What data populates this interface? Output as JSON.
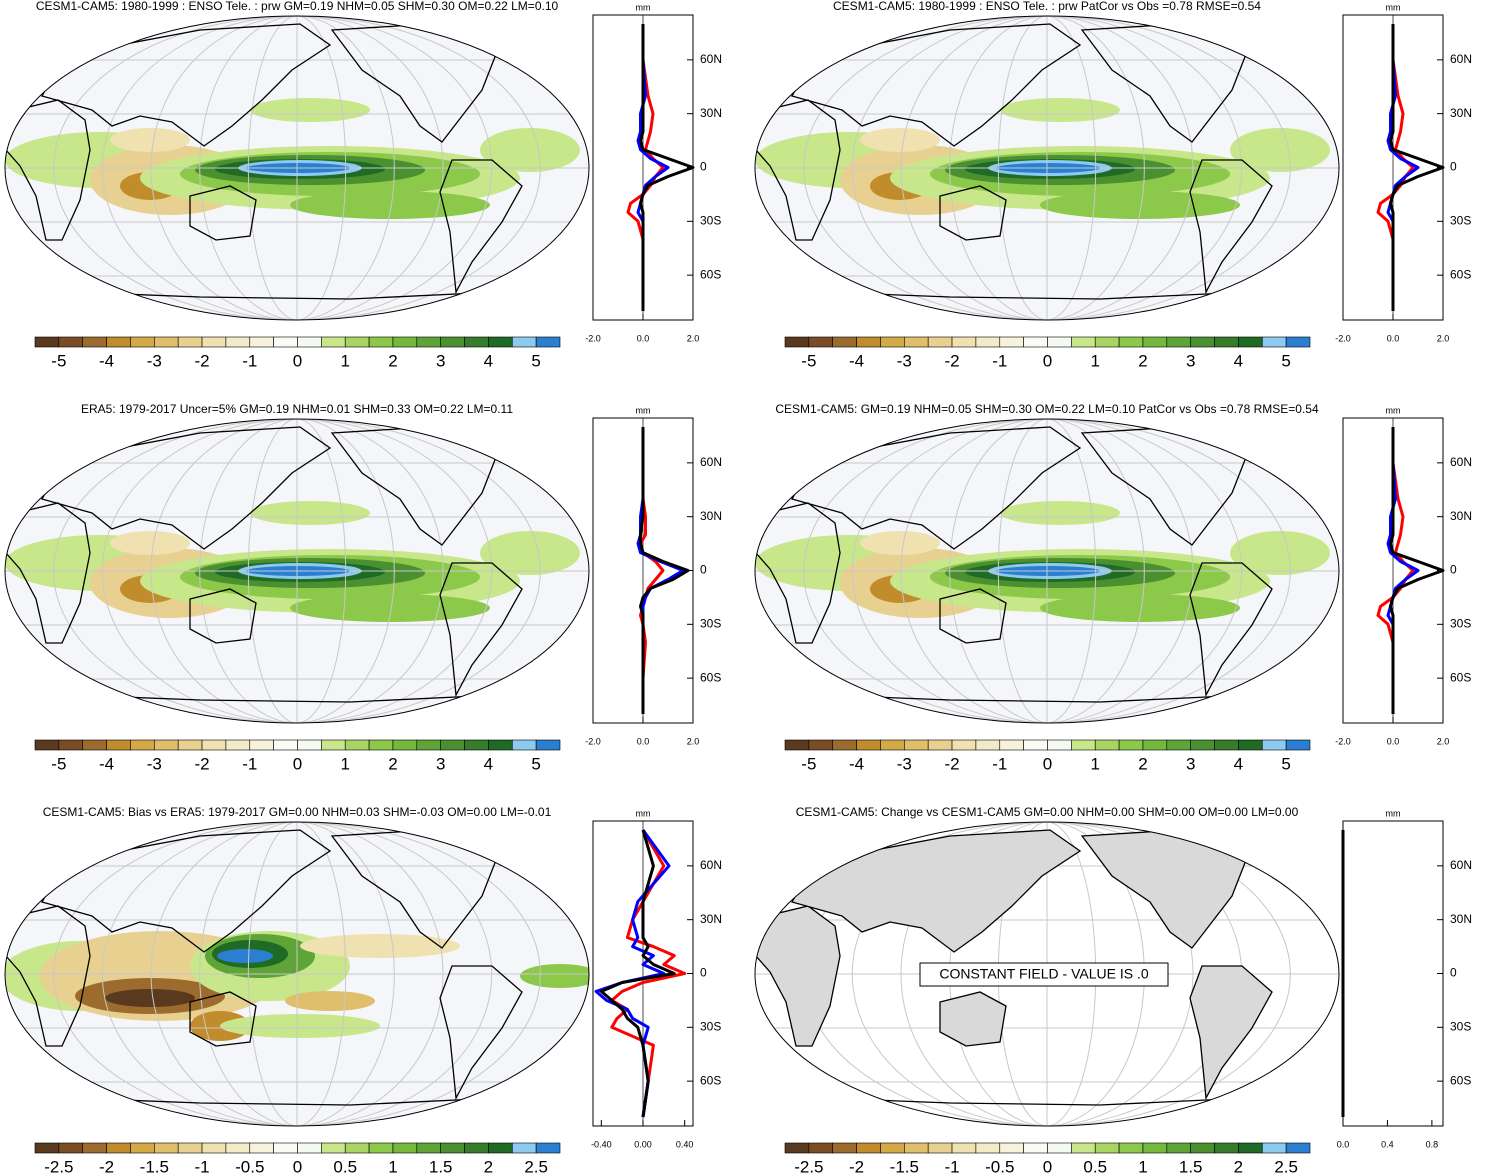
{
  "panels": [
    {
      "title": "CESM1-CAM5: 1980-1999 : ENSO Tele. : prw GM=0.19 NHM=0.05 SHM=0.30 OM=0.22 LM=0.10",
      "colorbar": {
        "clim": [
          -5.5,
          5.5
        ],
        "labels": [
          -5,
          -4,
          -3,
          -2,
          -1,
          0,
          1,
          2,
          3,
          4,
          5
        ],
        "colors": [
          "#5a3a1e",
          "#7b4d25",
          "#9c6b2e",
          "#c18d2c",
          "#d4a948",
          "#dfbf6c",
          "#e8d190",
          "#efe1b0",
          "#f3ebc8",
          "#f6f2dc",
          "#fbfbf6",
          "#f4f9f2",
          "#c8e68a",
          "#a8d464",
          "#8cc84a",
          "#74b83e",
          "#5ea436",
          "#4a9030",
          "#367c2a",
          "#1f6a24",
          "#8ccaf0",
          "#2b7fd0"
        ]
      },
      "profile": {
        "unit": "mm",
        "ylim": [
          -85,
          85
        ],
        "xlim": [
          -2,
          2
        ],
        "yticks": [
          {
            "value": 60,
            "label": "60N"
          },
          {
            "value": 30,
            "label": "30N"
          },
          0,
          {
            "value": -30,
            "label": "30S"
          },
          {
            "value": -60,
            "label": "60S"
          }
        ],
        "xticks": [
          {
            "value": -2,
            "label": "-2.0"
          },
          {
            "value": 0,
            "label": "0.0"
          },
          {
            "value": 2,
            "label": "2.0"
          }
        ],
        "lat": [
          -80,
          -60,
          -40,
          -30,
          -25,
          -20,
          -15,
          -10,
          -5,
          0,
          5,
          10,
          15,
          20,
          30,
          40,
          60,
          80
        ],
        "series": [
          {
            "color": "#ff0000",
            "values": [
              0,
              0,
              0,
              -0.2,
              -0.6,
              -0.5,
              0,
              0.3,
              0.5,
              0.8,
              0.4,
              0.1,
              0.2,
              0.3,
              0.4,
              0.2,
              0,
              0
            ]
          },
          {
            "color": "#0000ff",
            "values": [
              0,
              0,
              0,
              0,
              -0.2,
              -0.1,
              0,
              0.1,
              0.5,
              1.0,
              0.3,
              -0.1,
              -0.2,
              -0.1,
              -0.1,
              0.1,
              0,
              0
            ]
          },
          {
            "color": "#000000",
            "values": [
              0,
              0,
              0,
              0,
              0,
              -0.1,
              0,
              0.2,
              1.0,
              2.0,
              1.0,
              0,
              -0.1,
              0,
              0,
              0,
              0,
              0
            ]
          }
        ]
      }
    },
    {
      "title": "CESM1-CAM5: 1980-1999 : ENSO Tele. : prw PatCor vs Obs =0.78 RMSE=0.54",
      "colorbar": {
        "clim": [
          -5.5,
          5.5
        ],
        "labels": [
          -5,
          -4,
          -3,
          -2,
          -1,
          0,
          1,
          2,
          3,
          4,
          5
        ],
        "colors": [
          "#5a3a1e",
          "#7b4d25",
          "#9c6b2e",
          "#c18d2c",
          "#d4a948",
          "#dfbf6c",
          "#e8d190",
          "#efe1b0",
          "#f3ebc8",
          "#f6f2dc",
          "#fbfbf6",
          "#f4f9f2",
          "#c8e68a",
          "#a8d464",
          "#8cc84a",
          "#74b83e",
          "#5ea436",
          "#4a9030",
          "#367c2a",
          "#1f6a24",
          "#8ccaf0",
          "#2b7fd0"
        ]
      },
      "profile": {
        "unit": "mm",
        "ylim": [
          -85,
          85
        ],
        "xlim": [
          -2,
          2
        ],
        "yticks": [
          {
            "value": 60,
            "label": "60N"
          },
          {
            "value": 30,
            "label": "30N"
          },
          0,
          {
            "value": -30,
            "label": "30S"
          },
          {
            "value": -60,
            "label": "60S"
          }
        ],
        "xticks": [
          {
            "value": -2,
            "label": "-2.0"
          },
          {
            "value": 0,
            "label": "0.0"
          },
          {
            "value": 2,
            "label": "2.0"
          }
        ],
        "lat": [
          -80,
          -60,
          -40,
          -30,
          -25,
          -20,
          -15,
          -10,
          -5,
          0,
          5,
          10,
          15,
          20,
          30,
          40,
          60,
          80
        ],
        "series": [
          {
            "color": "#ff0000",
            "values": [
              0,
              0,
              0,
              -0.2,
              -0.6,
              -0.5,
              0,
              0.3,
              0.5,
              0.8,
              0.4,
              0.1,
              0.2,
              0.3,
              0.4,
              0.2,
              0,
              0
            ]
          },
          {
            "color": "#0000ff",
            "values": [
              0,
              0,
              0,
              0,
              -0.2,
              -0.1,
              0,
              0.1,
              0.5,
              1.0,
              0.3,
              -0.1,
              -0.2,
              -0.1,
              -0.1,
              0.1,
              0,
              0
            ]
          },
          {
            "color": "#000000",
            "values": [
              0,
              0,
              0,
              0,
              0,
              -0.1,
              0,
              0.2,
              1.0,
              2.0,
              1.0,
              0,
              -0.1,
              0,
              0,
              0,
              0,
              0
            ]
          }
        ]
      }
    },
    {
      "title": "ERA5: 1979-2017 Uncer=5% GM=0.19 NHM=0.01 SHM=0.33 OM=0.22 LM=0.11",
      "colorbar": {
        "clim": [
          -5.5,
          5.5
        ],
        "labels": [
          -5,
          -4,
          -3,
          -2,
          -1,
          0,
          1,
          2,
          3,
          4,
          5
        ],
        "colors": [
          "#5a3a1e",
          "#7b4d25",
          "#9c6b2e",
          "#c18d2c",
          "#d4a948",
          "#dfbf6c",
          "#e8d190",
          "#efe1b0",
          "#f3ebc8",
          "#f6f2dc",
          "#fbfbf6",
          "#f4f9f2",
          "#c8e68a",
          "#a8d464",
          "#8cc84a",
          "#74b83e",
          "#5ea436",
          "#4a9030",
          "#367c2a",
          "#1f6a24",
          "#8ccaf0",
          "#2b7fd0"
        ]
      },
      "profile": {
        "unit": "mm",
        "ylim": [
          -85,
          85
        ],
        "xlim": [
          -2,
          2
        ],
        "yticks": [
          {
            "value": 60,
            "label": "60N"
          },
          {
            "value": 30,
            "label": "30N"
          },
          0,
          {
            "value": -30,
            "label": "30S"
          },
          {
            "value": -60,
            "label": "60S"
          }
        ],
        "xticks": [
          {
            "value": -2,
            "label": "-2.0"
          },
          {
            "value": 0,
            "label": "0.0"
          },
          {
            "value": 2,
            "label": "2.0"
          }
        ],
        "lat": [
          -80,
          -60,
          -40,
          -30,
          -25,
          -20,
          -15,
          -10,
          -5,
          0,
          5,
          10,
          15,
          20,
          30,
          40,
          60,
          80
        ],
        "series": [
          {
            "color": "#ff0000",
            "values": [
              0,
              0,
              0.1,
              0,
              -0.1,
              0,
              0.1,
              0.2,
              0.5,
              0.8,
              0.5,
              0,
              -0.1,
              0.1,
              0.1,
              0,
              0,
              0
            ]
          },
          {
            "color": "#0000ff",
            "values": [
              0,
              0,
              0,
              0,
              0,
              0,
              0.1,
              0.3,
              1.0,
              1.6,
              0.7,
              -0.1,
              -0.2,
              -0.1,
              -0.1,
              0,
              0,
              0
            ]
          },
          {
            "color": "#000000",
            "values": [
              0,
              0,
              0,
              0,
              0,
              -0.1,
              0,
              0.3,
              1.2,
              1.8,
              0.8,
              0,
              -0.1,
              -0.1,
              0,
              0,
              0,
              0
            ]
          }
        ]
      }
    },
    {
      "title": "CESM1-CAM5: GM=0.19 NHM=0.05 SHM=0.30 OM=0.22 LM=0.10 PatCor vs Obs =0.78 RMSE=0.54",
      "colorbar": {
        "clim": [
          -5.5,
          5.5
        ],
        "labels": [
          -5,
          -4,
          -3,
          -2,
          -1,
          0,
          1,
          2,
          3,
          4,
          5
        ],
        "colors": [
          "#5a3a1e",
          "#7b4d25",
          "#9c6b2e",
          "#c18d2c",
          "#d4a948",
          "#dfbf6c",
          "#e8d190",
          "#efe1b0",
          "#f3ebc8",
          "#f6f2dc",
          "#fbfbf6",
          "#f4f9f2",
          "#c8e68a",
          "#a8d464",
          "#8cc84a",
          "#74b83e",
          "#5ea436",
          "#4a9030",
          "#367c2a",
          "#1f6a24",
          "#8ccaf0",
          "#2b7fd0"
        ]
      },
      "profile": {
        "unit": "mm",
        "ylim": [
          -85,
          85
        ],
        "xlim": [
          -2,
          2
        ],
        "yticks": [
          {
            "value": 60,
            "label": "60N"
          },
          {
            "value": 30,
            "label": "30N"
          },
          0,
          {
            "value": -30,
            "label": "30S"
          },
          {
            "value": -60,
            "label": "60S"
          }
        ],
        "xticks": [
          {
            "value": -2,
            "label": "-2.0"
          },
          {
            "value": 0,
            "label": "0.0"
          },
          {
            "value": 2,
            "label": "2.0"
          }
        ],
        "lat": [
          -80,
          -60,
          -40,
          -30,
          -25,
          -20,
          -15,
          -10,
          -5,
          0,
          5,
          10,
          15,
          20,
          30,
          40,
          60,
          80
        ],
        "series": [
          {
            "color": "#ff0000",
            "values": [
              0,
              0,
              0,
              -0.2,
              -0.6,
              -0.5,
              0,
              0.3,
              0.5,
              0.8,
              0.4,
              0.1,
              0.2,
              0.3,
              0.4,
              0.2,
              0,
              0
            ]
          },
          {
            "color": "#0000ff",
            "values": [
              0,
              0,
              0,
              0,
              -0.2,
              -0.1,
              0,
              0.1,
              0.5,
              1.0,
              0.3,
              -0.1,
              -0.2,
              -0.1,
              -0.1,
              0.1,
              0,
              0
            ]
          },
          {
            "color": "#000000",
            "values": [
              0,
              0,
              0,
              0,
              0,
              -0.1,
              0,
              0.2,
              1.0,
              2.0,
              1.0,
              0,
              -0.1,
              0,
              0,
              0,
              0,
              0
            ]
          }
        ]
      }
    },
    {
      "title": "CESM1-CAM5: Bias vs ERA5: 1979-2017 GM=0.00 NHM=0.03 SHM=-0.03 OM=0.00 LM=-0.01",
      "colorbar": {
        "clim": [
          -2.75,
          2.75
        ],
        "labels": [
          -2.5,
          -2,
          -1.5,
          -1,
          -0.5,
          0,
          0.5,
          1,
          1.5,
          2,
          2.5
        ],
        "colors": [
          "#5a3a1e",
          "#7b4d25",
          "#9c6b2e",
          "#c18d2c",
          "#d4a948",
          "#dfbf6c",
          "#e8d190",
          "#efe1b0",
          "#f3ebc8",
          "#f6f2dc",
          "#fbfbf6",
          "#f4f9f2",
          "#c8e68a",
          "#a8d464",
          "#8cc84a",
          "#74b83e",
          "#5ea436",
          "#4a9030",
          "#367c2a",
          "#1f6a24",
          "#8ccaf0",
          "#2b7fd0"
        ]
      },
      "profile": {
        "unit": "mm",
        "ylim": [
          -85,
          85
        ],
        "xlim": [
          -0.48,
          0.48
        ],
        "yticks": [
          {
            "value": 60,
            "label": "60N"
          },
          {
            "value": 30,
            "label": "30N"
          },
          0,
          {
            "value": -30,
            "label": "30S"
          },
          {
            "value": -60,
            "label": "60S"
          }
        ],
        "xticks": [
          {
            "value": -0.4,
            "label": "-0.40"
          },
          {
            "value": 0,
            "label": "0.00"
          },
          {
            "value": 0.4,
            "label": "0.40"
          }
        ],
        "lat": [
          -80,
          -60,
          -40,
          -30,
          -25,
          -20,
          -15,
          -10,
          -5,
          0,
          5,
          10,
          15,
          20,
          30,
          40,
          60,
          80
        ],
        "series": [
          {
            "color": "#ff0000",
            "values": [
              0,
              0.05,
              0.1,
              -0.3,
              -0.25,
              -0.15,
              -0.3,
              -0.2,
              0,
              0.4,
              0.2,
              0.3,
              0.1,
              -0.15,
              -0.1,
              0,
              0.2,
              0
            ]
          },
          {
            "color": "#0000ff",
            "values": [
              0,
              0.05,
              0,
              0.05,
              -0.1,
              -0.15,
              -0.35,
              -0.45,
              -0.2,
              0.2,
              0,
              0.1,
              -0.1,
              -0.05,
              -0.1,
              -0.05,
              0.25,
              0
            ]
          },
          {
            "color": "#000000",
            "values": [
              0,
              0.05,
              0,
              -0.05,
              -0.15,
              -0.2,
              -0.3,
              -0.4,
              -0.2,
              0.3,
              0.1,
              0,
              0.05,
              0,
              0,
              0,
              0.1,
              0
            ]
          }
        ]
      }
    },
    {
      "title": "CESM1-CAM5: Change vs CESM1-CAM5 GM=0.00 NHM=0.00 SHM=0.00 OM=0.00 LM=0.00",
      "annotation": "CONSTANT FIELD - VALUE IS .0",
      "colorbar": {
        "clim": [
          -2.75,
          2.75
        ],
        "labels": [
          -2.5,
          -2,
          -1.5,
          -1,
          -0.5,
          0,
          0.5,
          1,
          1.5,
          2,
          2.5
        ],
        "colors": [
          "#5a3a1e",
          "#7b4d25",
          "#9c6b2e",
          "#c18d2c",
          "#d4a948",
          "#dfbf6c",
          "#e8d190",
          "#efe1b0",
          "#f3ebc8",
          "#f6f2dc",
          "#fbfbf6",
          "#f4f9f2",
          "#c8e68a",
          "#a8d464",
          "#8cc84a",
          "#74b83e",
          "#5ea436",
          "#4a9030",
          "#367c2a",
          "#1f6a24",
          "#8ccaf0",
          "#2b7fd0"
        ]
      },
      "profile": {
        "unit": "mm",
        "ylim": [
          -85,
          85
        ],
        "xlim": [
          0,
          0.9
        ],
        "yticks": [
          {
            "value": 60,
            "label": "60N"
          },
          {
            "value": 30,
            "label": "30N"
          },
          0,
          {
            "value": -30,
            "label": "30S"
          },
          {
            "value": -60,
            "label": "60S"
          }
        ],
        "xticks": [
          {
            "value": 0,
            "label": "0.0"
          },
          0.4,
          0.8
        ],
        "lat": [
          -80,
          -60,
          -40,
          -30,
          -25,
          -20,
          -15,
          -10,
          -5,
          0,
          5,
          10,
          15,
          20,
          30,
          40,
          60,
          80
        ],
        "series": [
          {
            "color": "#000000",
            "values": [
              0,
              0,
              0,
              0,
              0,
              0,
              0,
              0,
              0,
              0,
              0,
              0,
              0,
              0,
              0,
              0,
              0,
              0
            ]
          }
        ]
      }
    }
  ]
}
